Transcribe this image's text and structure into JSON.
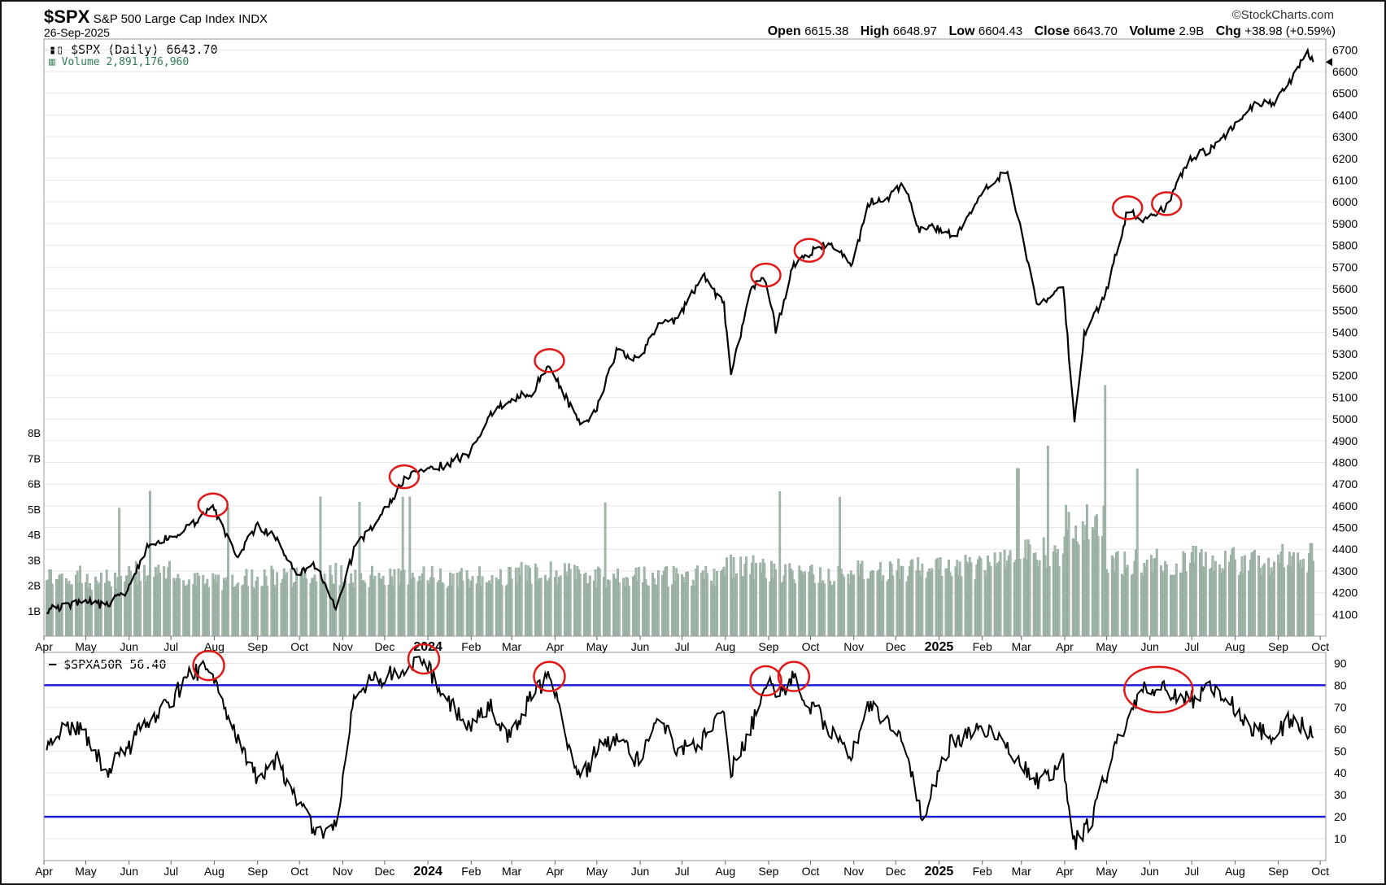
{
  "header": {
    "ticker": "$SPX",
    "index_name": "S&P 500 Large Cap Index",
    "exchange": "INDX",
    "date": "26-Sep-2025",
    "brand": "©StockCharts.com",
    "ohlc": {
      "open_label": "Open",
      "open": "6615.38",
      "high_label": "High",
      "high": "6648.97",
      "low_label": "Low",
      "low": "6604.43",
      "close_label": "Close",
      "close": "6643.70",
      "volume_label": "Volume",
      "volume": "2.9B",
      "chg_label": "Chg",
      "chg": "+38.98 (+0.59%)"
    }
  },
  "legend": {
    "price": "$SPX (Daily) 6643.70",
    "volume": "Volume 2,891,176,960",
    "indicator": "$SPXA50R 56.40"
  },
  "colors": {
    "price_line": "#000000",
    "volume_bars": "#a4b8ac",
    "volume_edge": "#7e9a8a",
    "threshold_lines": "#1a1adb",
    "highlight_circles": "#e01818",
    "grid": "#e6e6e6"
  },
  "chart_data": [
    {
      "type": "line",
      "panel": "price",
      "series": [
        {
          "name": "$SPX (Daily)",
          "x": [
            "2023-04-03",
            "2023-04-14",
            "2023-05-01",
            "2023-05-15",
            "2023-06-01",
            "2023-06-15",
            "2023-06-30",
            "2023-07-14",
            "2023-07-31",
            "2023-08-18",
            "2023-08-31",
            "2023-09-15",
            "2023-09-29",
            "2023-10-13",
            "2023-10-27",
            "2023-11-10",
            "2023-11-30",
            "2023-12-15",
            "2023-12-29",
            "2024-01-12",
            "2024-01-31",
            "2024-02-15",
            "2024-02-29",
            "2024-03-15",
            "2024-03-28",
            "2024-04-19",
            "2024-04-30",
            "2024-05-15",
            "2024-05-31",
            "2024-06-14",
            "2024-06-28",
            "2024-07-16",
            "2024-07-31",
            "2024-08-05",
            "2024-08-19",
            "2024-08-30",
            "2024-09-06",
            "2024-09-19",
            "2024-09-30",
            "2024-10-15",
            "2024-10-31",
            "2024-11-11",
            "2024-11-29",
            "2024-12-06",
            "2024-12-18",
            "2024-12-31",
            "2025-01-13",
            "2025-01-31",
            "2025-02-19",
            "2025-03-13",
            "2025-03-31",
            "2025-04-08",
            "2025-04-15",
            "2025-04-30",
            "2025-05-16",
            "2025-05-30",
            "2025-06-13",
            "2025-06-30",
            "2025-07-15",
            "2025-07-31",
            "2025-08-15",
            "2025-08-29",
            "2025-09-12",
            "2025-09-22",
            "2025-09-26"
          ],
          "values": [
            4124,
            4137,
            4169,
            4136,
            4221,
            4425,
            4450,
            4505,
            4589,
            4370,
            4507,
            4450,
            4288,
            4327,
            4117,
            4415,
            4568,
            4719,
            4770,
            4784,
            4846,
            5029,
            5096,
            5117,
            5254,
            4967,
            5035,
            5308,
            5278,
            5431,
            5460,
            5667,
            5522,
            5186,
            5608,
            5648,
            5408,
            5713,
            5762,
            5815,
            5705,
            5995,
            6032,
            6090,
            5872,
            5882,
            5836,
            6040,
            6144,
            5521,
            5612,
            4982,
            5396,
            5569,
            5958,
            5911,
            5977,
            6205,
            6243,
            6339,
            6449,
            6460,
            6584,
            6693,
            6644
          ]
        }
      ],
      "ylim": [
        4000,
        6750
      ],
      "yticks": [
        4100,
        4200,
        4300,
        4400,
        4500,
        4600,
        4700,
        4800,
        4900,
        5000,
        5100,
        5200,
        5300,
        5400,
        5500,
        5600,
        5700,
        5800,
        5900,
        6000,
        6100,
        6200,
        6300,
        6400,
        6500,
        6600,
        6700
      ],
      "highlight_circles_at": [
        "2023-07-31",
        "2023-12-15",
        "2024-03-28",
        "2024-08-30",
        "2024-09-30",
        "2025-05-16",
        "2025-06-13"
      ]
    },
    {
      "type": "bar",
      "panel": "volume",
      "series": [
        {
          "name": "Volume",
          "x": [
            "2023-04",
            "2023-05",
            "2023-06",
            "2023-07",
            "2023-08",
            "2023-09",
            "2023-10",
            "2023-11",
            "2023-12",
            "2024-01",
            "2024-02",
            "2024-03",
            "2024-04",
            "2024-05",
            "2024-06",
            "2024-07",
            "2024-08",
            "2024-09",
            "2024-10",
            "2024-11",
            "2024-12",
            "2025-01",
            "2025-02",
            "2025-03",
            "2025-04",
            "2025-05",
            "2025-06",
            "2025-07",
            "2025-08",
            "2025-09"
          ],
          "values": [
            2.4,
            2.3,
            2.6,
            2.4,
            2.3,
            2.4,
            2.5,
            2.4,
            2.5,
            2.4,
            2.5,
            2.6,
            2.5,
            2.4,
            2.4,
            2.5,
            2.8,
            2.6,
            2.5,
            2.6,
            2.7,
            2.8,
            3.0,
            3.4,
            4.5,
            3.0,
            3.0,
            3.1,
            3.0,
            3.2
          ]
        }
      ],
      "ylim": [
        0,
        8
      ],
      "ytick_labels": [
        "1B",
        "2B",
        "3B",
        "4B",
        "5B",
        "6B",
        "7B",
        "8B"
      ]
    },
    {
      "type": "line",
      "panel": "indicator",
      "series": [
        {
          "name": "$SPXA50R",
          "x": [
            "2023-04-03",
            "2023-04-14",
            "2023-05-01",
            "2023-05-15",
            "2023-06-01",
            "2023-06-15",
            "2023-06-30",
            "2023-07-14",
            "2023-07-28",
            "2023-08-15",
            "2023-08-31",
            "2023-09-15",
            "2023-09-29",
            "2023-10-13",
            "2023-10-27",
            "2023-11-10",
            "2023-11-30",
            "2023-12-15",
            "2023-12-29",
            "2024-01-12",
            "2024-01-31",
            "2024-02-15",
            "2024-02-29",
            "2024-03-15",
            "2024-03-28",
            "2024-04-19",
            "2024-04-30",
            "2024-05-15",
            "2024-05-31",
            "2024-06-14",
            "2024-06-28",
            "2024-07-16",
            "2024-07-31",
            "2024-08-05",
            "2024-08-19",
            "2024-08-30",
            "2024-09-06",
            "2024-09-19",
            "2024-09-30",
            "2024-10-15",
            "2024-10-31",
            "2024-11-11",
            "2024-11-29",
            "2024-12-10",
            "2024-12-20",
            "2025-01-10",
            "2025-01-31",
            "2025-02-19",
            "2025-03-13",
            "2025-03-31",
            "2025-04-08",
            "2025-04-21",
            "2025-05-09",
            "2025-05-30",
            "2025-06-13",
            "2025-06-30",
            "2025-07-15",
            "2025-07-31",
            "2025-08-15",
            "2025-08-29",
            "2025-09-12",
            "2025-09-26"
          ],
          "values": [
            50,
            62,
            58,
            40,
            52,
            65,
            72,
            84,
            89,
            60,
            38,
            46,
            28,
            12,
            16,
            78,
            84,
            89,
            92,
            75,
            62,
            70,
            55,
            75,
            84,
            35,
            50,
            55,
            45,
            68,
            50,
            55,
            72,
            40,
            60,
            82,
            75,
            84,
            72,
            60,
            48,
            70,
            62,
            48,
            20,
            55,
            60,
            52,
            35,
            45,
            8,
            20,
            55,
            80,
            78,
            73,
            80,
            70,
            60,
            58,
            65,
            56
          ]
        }
      ],
      "ylim": [
        0,
        95
      ],
      "yticks": [
        10,
        20,
        30,
        40,
        50,
        60,
        70,
        80,
        90
      ],
      "reference_lines": [
        80,
        20
      ],
      "highlight_circles_at": [
        "2023-07-28",
        "2023-12-29",
        "2024-03-28",
        "2024-08-30",
        "2024-09-19",
        "2025-06-13"
      ]
    }
  ],
  "x_axis": {
    "labels": [
      {
        "label": "Apr",
        "date": "2023-04-01"
      },
      {
        "label": "May",
        "date": "2023-05-01"
      },
      {
        "label": "Jun",
        "date": "2023-06-01"
      },
      {
        "label": "Jul",
        "date": "2023-07-01"
      },
      {
        "label": "Aug",
        "date": "2023-08-01"
      },
      {
        "label": "Sep",
        "date": "2023-09-01"
      },
      {
        "label": "Oct",
        "date": "2023-10-01"
      },
      {
        "label": "Nov",
        "date": "2023-11-01"
      },
      {
        "label": "Dec",
        "date": "2023-12-01"
      },
      {
        "label": "2024",
        "date": "2024-01-01",
        "bold": true
      },
      {
        "label": "Feb",
        "date": "2024-02-01"
      },
      {
        "label": "Mar",
        "date": "2024-03-01"
      },
      {
        "label": "Apr",
        "date": "2024-04-01"
      },
      {
        "label": "May",
        "date": "2024-05-01"
      },
      {
        "label": "Jun",
        "date": "2024-06-01"
      },
      {
        "label": "Jul",
        "date": "2024-07-01"
      },
      {
        "label": "Aug",
        "date": "2024-08-01"
      },
      {
        "label": "Sep",
        "date": "2024-09-01"
      },
      {
        "label": "Oct",
        "date": "2024-10-01"
      },
      {
        "label": "Nov",
        "date": "2024-11-01"
      },
      {
        "label": "Dec",
        "date": "2024-12-01"
      },
      {
        "label": "2025",
        "date": "2025-01-01",
        "bold": true
      },
      {
        "label": "Feb",
        "date": "2025-02-01"
      },
      {
        "label": "Mar",
        "date": "2025-03-01"
      },
      {
        "label": "Apr",
        "date": "2025-04-01"
      },
      {
        "label": "May",
        "date": "2025-05-01"
      },
      {
        "label": "Jun",
        "date": "2025-06-01"
      },
      {
        "label": "Jul",
        "date": "2025-07-01"
      },
      {
        "label": "Aug",
        "date": "2025-08-01"
      },
      {
        "label": "Sep",
        "date": "2025-09-01"
      },
      {
        "label": "Oct",
        "date": "2025-10-01"
      }
    ]
  }
}
